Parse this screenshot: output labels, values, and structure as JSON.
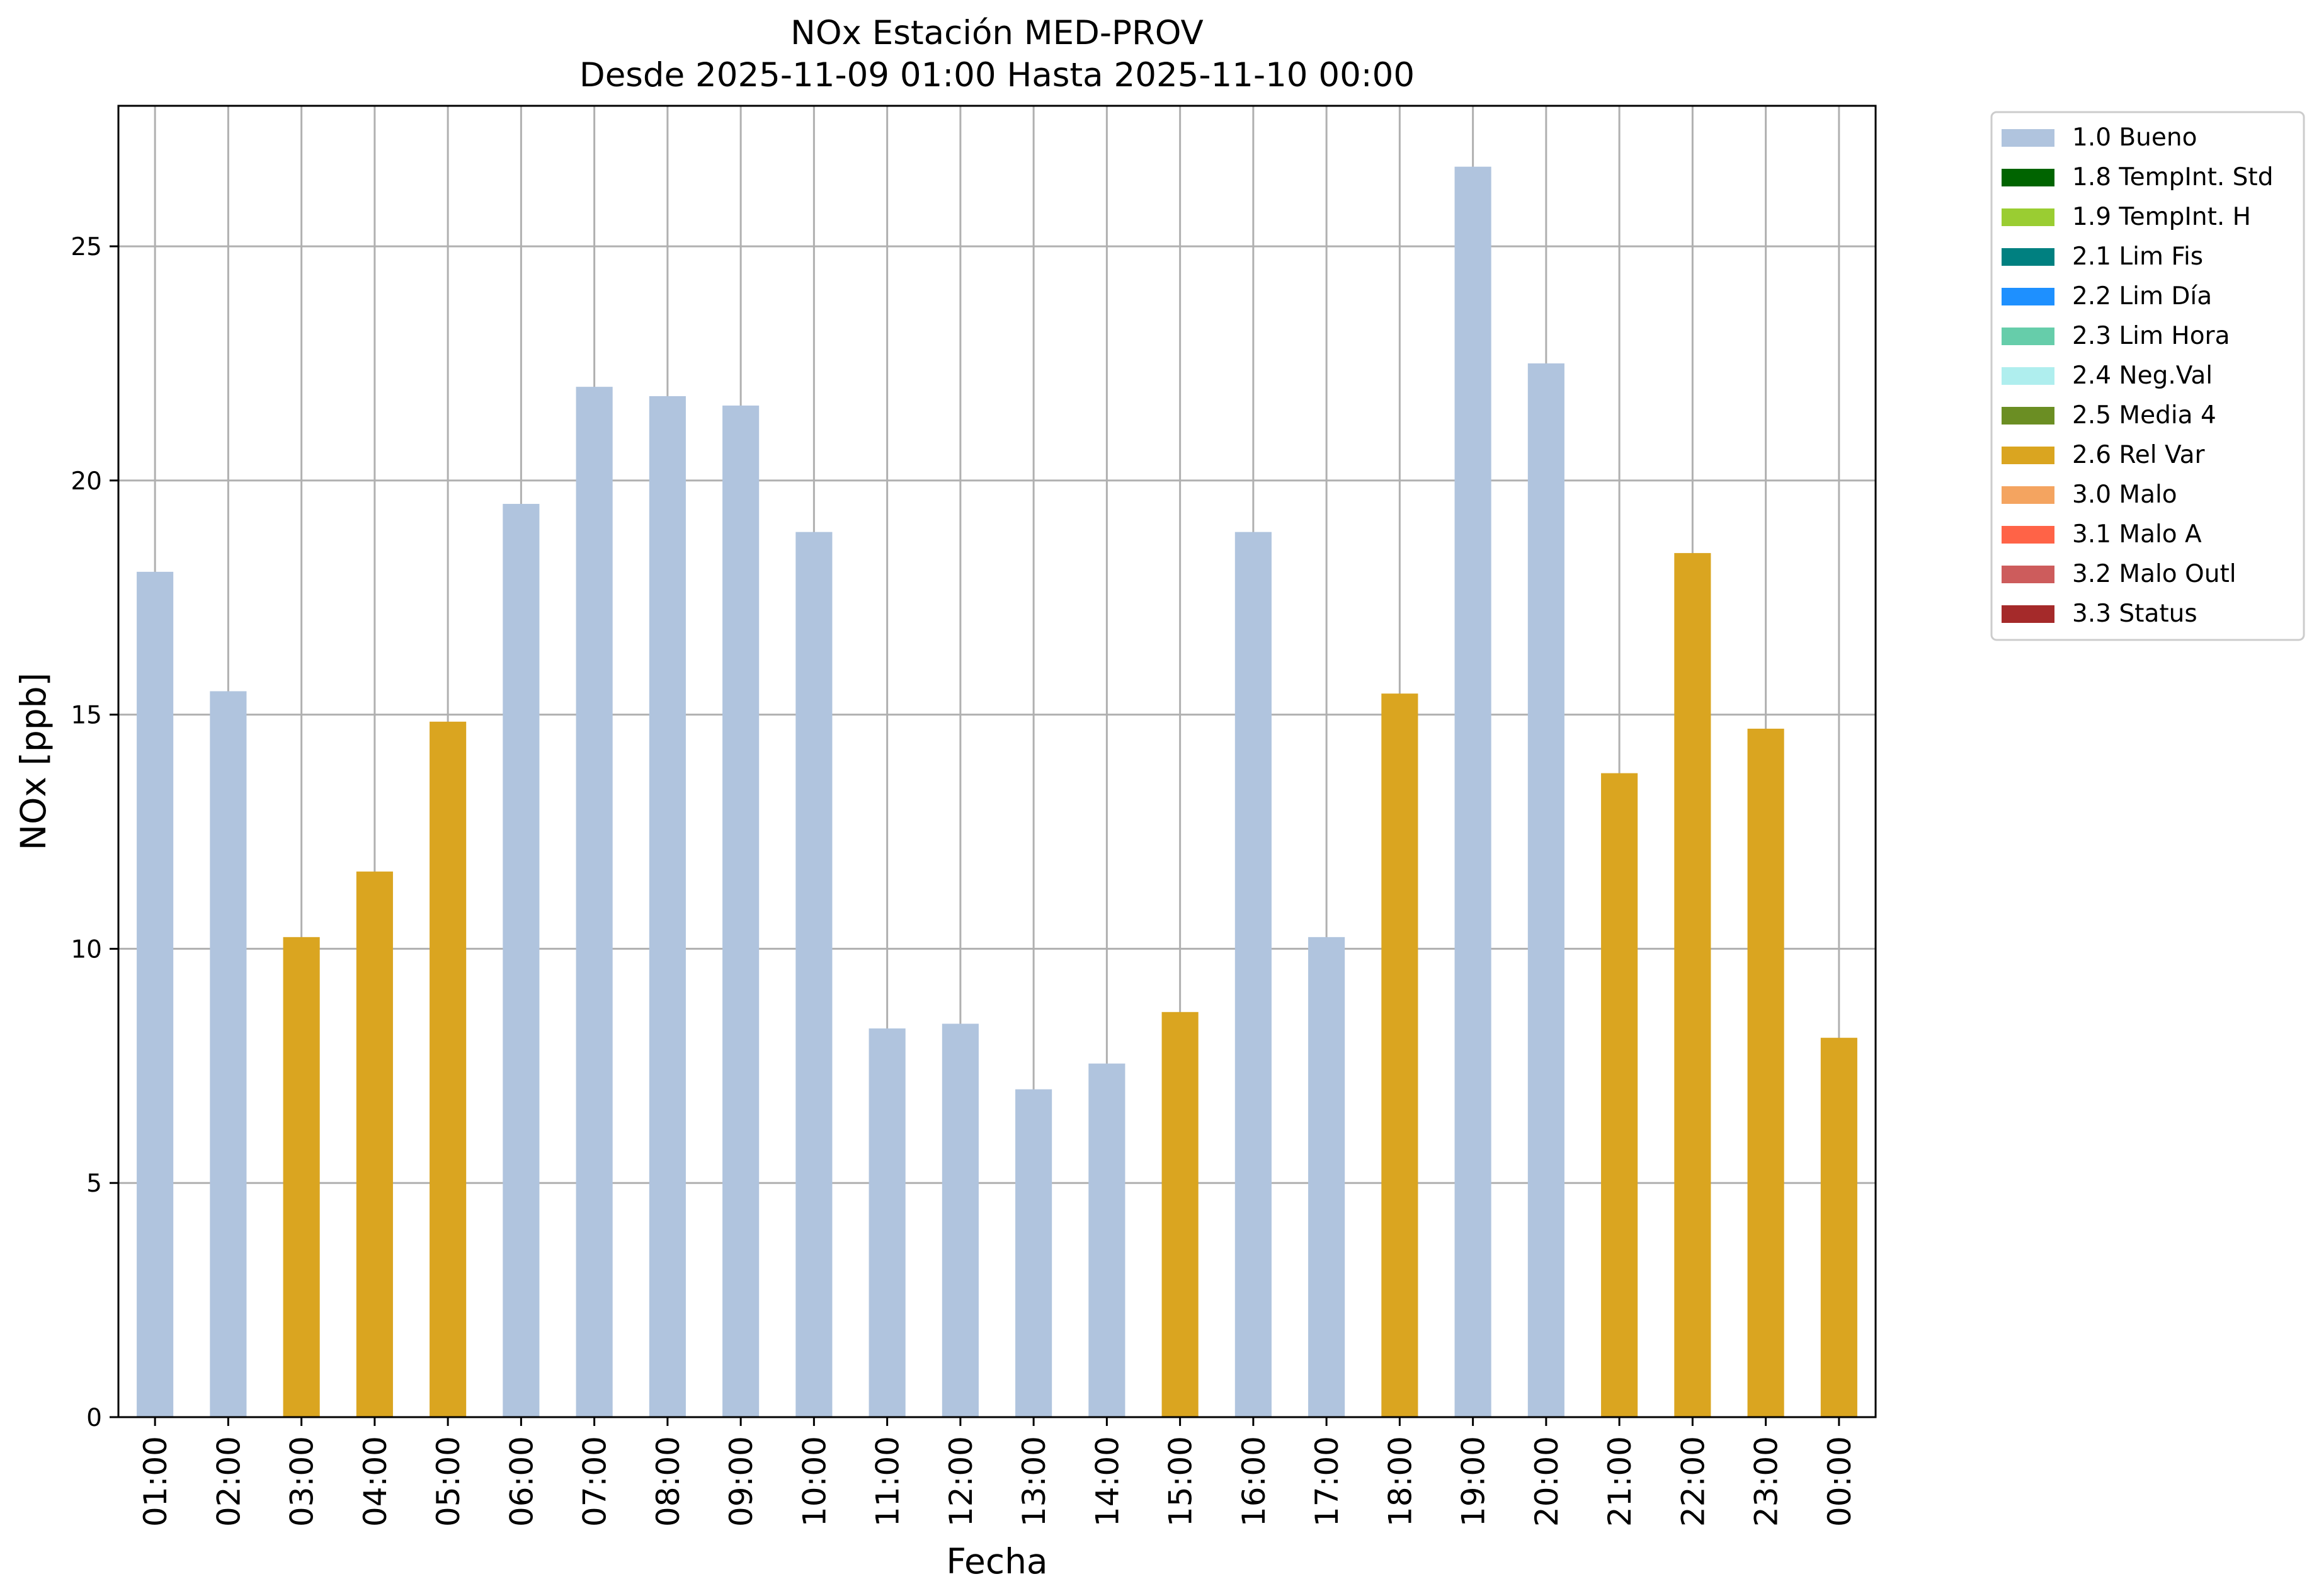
{
  "chart_data": {
    "type": "bar",
    "title": "NOx Estación MED-PROV",
    "subtitle": "Desde 2025-11-09 01:00 Hasta 2025-11-10 00:00",
    "xlabel": "Fecha",
    "ylabel": "NOx [ppb]",
    "ylim": [
      0,
      28
    ],
    "yticks": [
      0,
      5,
      10,
      15,
      20,
      25
    ],
    "grid": true,
    "legend_position": "outside-top-right",
    "categories": [
      "01:00",
      "02:00",
      "03:00",
      "04:00",
      "05:00",
      "06:00",
      "07:00",
      "08:00",
      "09:00",
      "10:00",
      "11:00",
      "12:00",
      "13:00",
      "14:00",
      "15:00",
      "16:00",
      "17:00",
      "18:00",
      "19:00",
      "20:00",
      "21:00",
      "22:00",
      "23:00",
      "00:00"
    ],
    "values": [
      18.05,
      15.5,
      10.25,
      11.65,
      14.85,
      19.5,
      22.0,
      21.8,
      21.6,
      18.9,
      8.3,
      8.4,
      7.0,
      7.55,
      8.65,
      18.9,
      10.25,
      15.45,
      26.7,
      22.5,
      13.75,
      18.45,
      14.7,
      8.1
    ],
    "flags": [
      "1.0 Bueno",
      "1.0 Bueno",
      "2.6 Rel Var",
      "2.6 Rel Var",
      "2.6 Rel Var",
      "1.0 Bueno",
      "1.0 Bueno",
      "1.0 Bueno",
      "1.0 Bueno",
      "1.0 Bueno",
      "1.0 Bueno",
      "1.0 Bueno",
      "1.0 Bueno",
      "1.0 Bueno",
      "2.6 Rel Var",
      "1.0 Bueno",
      "1.0 Bueno",
      "2.6 Rel Var",
      "1.0 Bueno",
      "1.0 Bueno",
      "2.6 Rel Var",
      "2.6 Rel Var",
      "2.6 Rel Var",
      "2.6 Rel Var"
    ],
    "legend": [
      {
        "name": "1.0 Bueno",
        "color": "#b0c4de"
      },
      {
        "name": "1.8 TempInt. Std",
        "color": "#006400"
      },
      {
        "name": "1.9 TempInt. H",
        "color": "#9acd32"
      },
      {
        "name": "2.1 Lim Fis",
        "color": "#008080"
      },
      {
        "name": "2.2 Lim Día",
        "color": "#1e90ff"
      },
      {
        "name": "2.3 Lim Hora",
        "color": "#66cdaa"
      },
      {
        "name": "2.4 Neg.Val",
        "color": "#afeeee"
      },
      {
        "name": "2.5 Media 4",
        "color": "#6b8e23"
      },
      {
        "name": "2.6 Rel Var",
        "color": "#daa520"
      },
      {
        "name": "3.0 Malo",
        "color": "#f4a460"
      },
      {
        "name": "3.1 Malo A",
        "color": "#ff6347"
      },
      {
        "name": "3.2 Malo Outl",
        "color": "#cd5c5c"
      },
      {
        "name": "3.3 Status",
        "color": "#a52a2a"
      }
    ]
  }
}
